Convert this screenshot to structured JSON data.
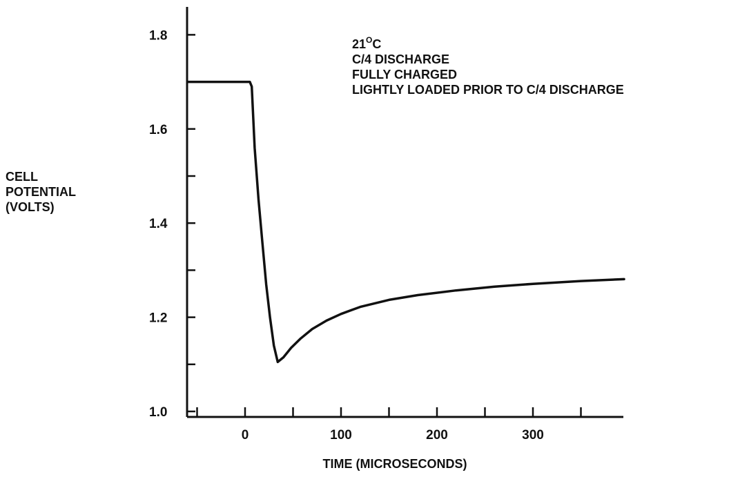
{
  "chart_data": {
    "type": "line",
    "title": "",
    "xlabel": "TIME (MICROSECONDS)",
    "ylabel": [
      "CELL",
      "POTENTIAL",
      "(VOLTS)"
    ],
    "xlim": [
      -60,
      400
    ],
    "ylim": [
      1.0,
      1.85
    ],
    "x_ticks": [
      0,
      100,
      200,
      300
    ],
    "y_ticks": [
      1.0,
      1.2,
      1.4,
      1.6,
      1.8
    ],
    "x_tick_labels": [
      "0",
      "100",
      "200",
      "300"
    ],
    "y_tick_labels": [
      "1.0",
      "1.2",
      "1.4",
      "1.6",
      "1.8"
    ],
    "grid": false,
    "annotations": {
      "temp_value": "21",
      "temp_sup": "O",
      "temp_unit": "C",
      "lines": [
        "C/4 DISCHARGE",
        "FULLY CHARGED",
        "LIGHTLY LOADED PRIOR TO C/4 DISCHARGE"
      ]
    },
    "series": [
      {
        "x": [
          -60,
          5,
          7,
          10,
          14,
          18,
          22,
          26,
          30,
          34,
          40,
          48,
          58,
          70,
          85,
          100,
          120,
          150,
          180,
          220,
          260,
          300,
          350,
          395
        ],
        "y": [
          1.7,
          1.7,
          1.69,
          1.56,
          1.45,
          1.36,
          1.27,
          1.2,
          1.14,
          1.105,
          1.115,
          1.135,
          1.155,
          1.175,
          1.193,
          1.207,
          1.222,
          1.237,
          1.247,
          1.257,
          1.265,
          1.271,
          1.277,
          1.281
        ]
      }
    ]
  }
}
